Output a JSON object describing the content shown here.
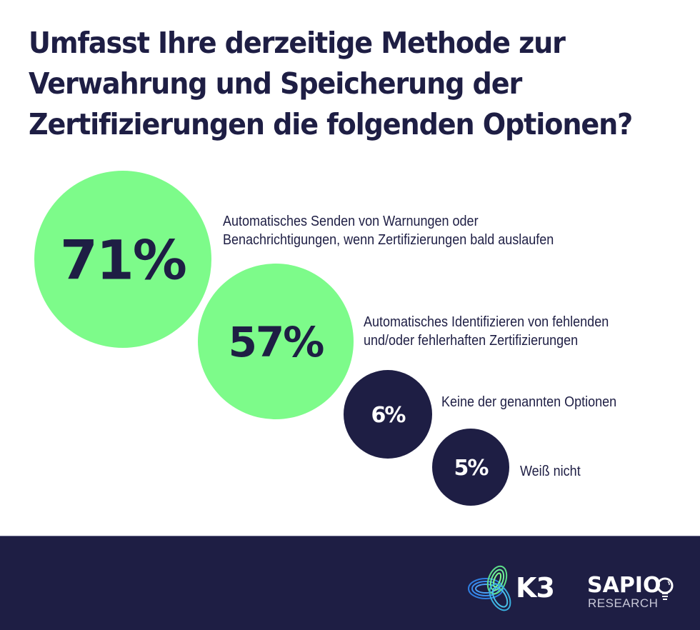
{
  "title_lines": [
    "Umfasst Ihre derzeitige Methode zur",
    "Verwahrung und Speicherung der",
    "Zertifizierungen die folgenden Optionen?"
  ],
  "colors": {
    "navy": "#1e1e44",
    "green": "#7dfb8a",
    "white": "#ffffff"
  },
  "chart_data": {
    "type": "bubble",
    "title": "Umfasst Ihre derzeitige Methode zur Verwahrung und Speicherung der Zertifizierungen die folgenden Optionen?",
    "unit": "%",
    "items": [
      {
        "value": 71,
        "display": "71%",
        "label_lines": [
          "Automatisches Senden von Warnungen oder",
          "Benachrichtigungen, wenn Zertifizierungen bald auslaufen"
        ],
        "fill": "#7dfb8a",
        "text_color": "#1e1e44"
      },
      {
        "value": 57,
        "display": "57%",
        "label_lines": [
          "Automatisches Identifizieren von fehlenden",
          "und/oder fehlerhaften Zertifizierungen"
        ],
        "fill": "#7dfb8a",
        "text_color": "#1e1e44"
      },
      {
        "value": 6,
        "display": "6%",
        "label_lines": [
          "Keine der genannten Optionen"
        ],
        "fill": "#1e1e44",
        "text_color": "#ffffff"
      },
      {
        "value": 5,
        "display": "5%",
        "label_lines": [
          "Weiß nicht"
        ],
        "fill": "#1e1e44",
        "text_color": "#ffffff"
      }
    ]
  },
  "footer": {
    "logo_k3": "K3",
    "logo_sapio": "SAPIO",
    "logo_sapio_sub": "RESEARCH"
  }
}
